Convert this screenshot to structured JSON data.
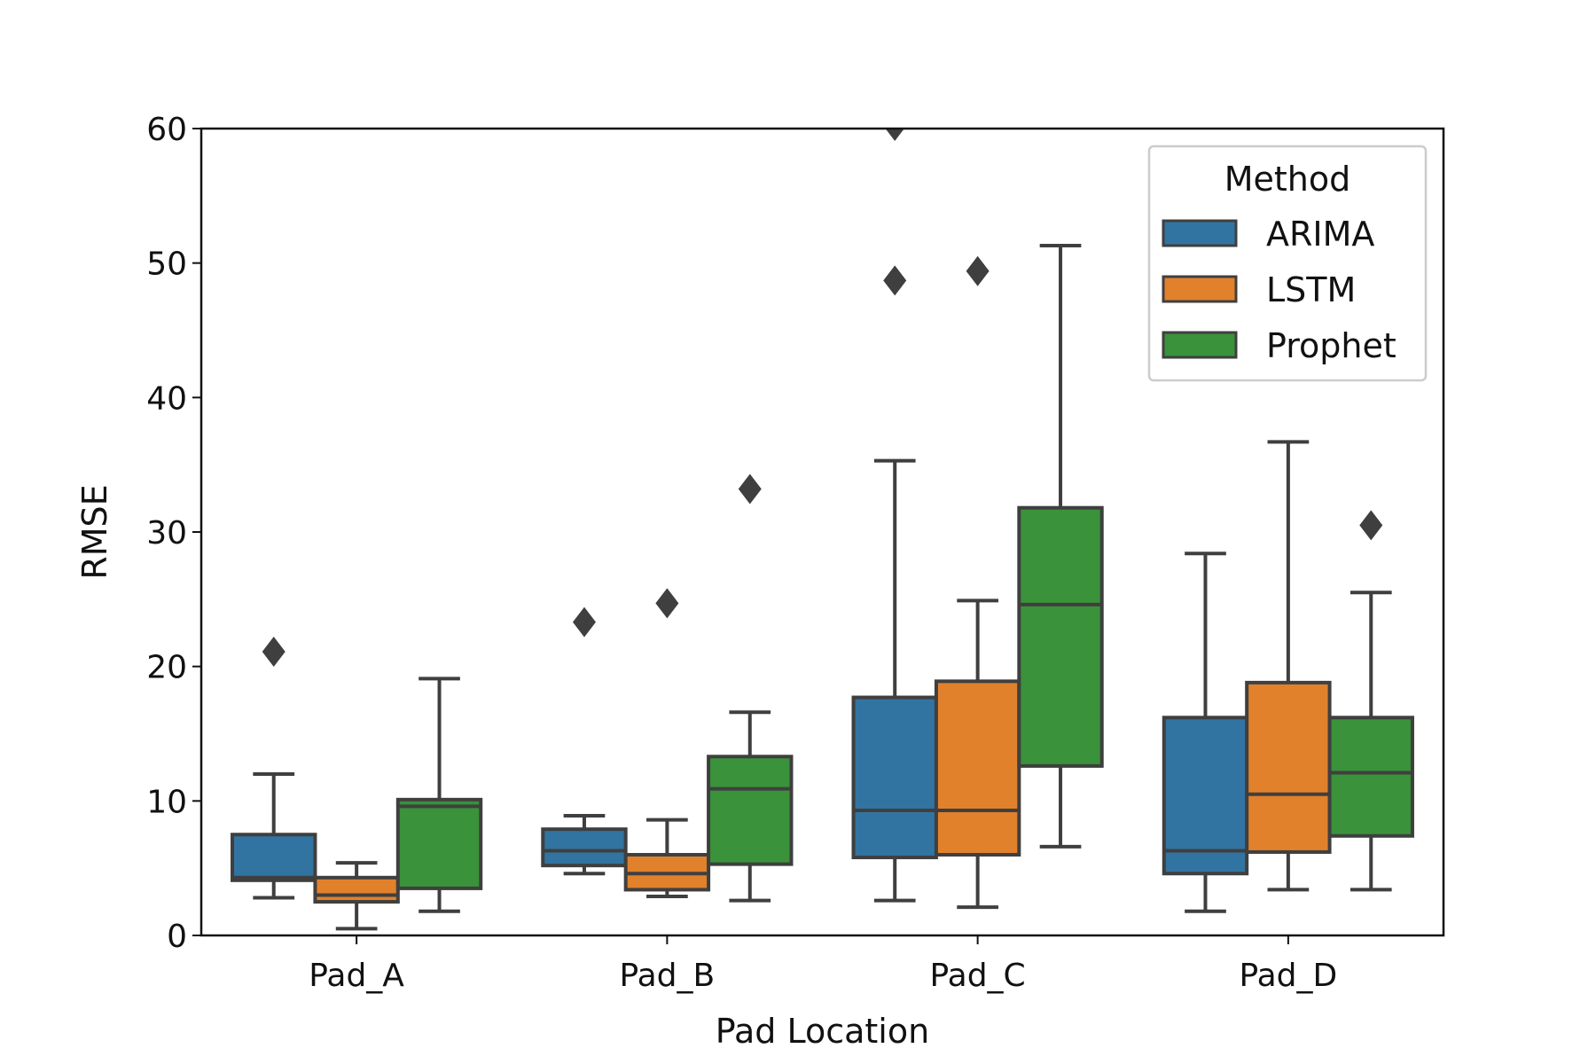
{
  "chart_data": {
    "type": "box",
    "title": "",
    "xlabel": "Pad Location",
    "ylabel": "RMSE",
    "ylim": [
      0,
      60
    ],
    "yticks": [
      0,
      10,
      20,
      30,
      40,
      50,
      60
    ],
    "categories": [
      "Pad_A",
      "Pad_B",
      "Pad_C",
      "Pad_D"
    ],
    "grid": false,
    "legend": {
      "title": "Method",
      "placement": "top-right"
    },
    "series": [
      {
        "name": "ARIMA",
        "color": "#3274a1",
        "boxes": [
          {
            "whisker_low": 2.8,
            "q1": 4.1,
            "median": 4.3,
            "q3": 7.5,
            "whisker_high": 12.0,
            "outliers": [
              21.1
            ]
          },
          {
            "whisker_low": 4.6,
            "q1": 5.2,
            "median": 6.3,
            "q3": 7.9,
            "whisker_high": 8.9,
            "outliers": [
              23.3
            ]
          },
          {
            "whisker_low": 2.6,
            "q1": 5.8,
            "median": 9.3,
            "q3": 17.7,
            "whisker_high": 35.3,
            "outliers": [
              48.7,
              60.2
            ]
          },
          {
            "whisker_low": 1.8,
            "q1": 4.6,
            "median": 6.3,
            "q3": 16.2,
            "whisker_high": 28.4,
            "outliers": []
          }
        ]
      },
      {
        "name": "LSTM",
        "color": "#e1812c",
        "boxes": [
          {
            "whisker_low": 0.5,
            "q1": 2.5,
            "median": 3.0,
            "q3": 4.3,
            "whisker_high": 5.4,
            "outliers": []
          },
          {
            "whisker_low": 2.9,
            "q1": 3.4,
            "median": 4.6,
            "q3": 6.0,
            "whisker_high": 8.6,
            "outliers": [
              24.7
            ]
          },
          {
            "whisker_low": 2.1,
            "q1": 6.0,
            "median": 9.3,
            "q3": 18.9,
            "whisker_high": 24.9,
            "outliers": [
              49.4
            ]
          },
          {
            "whisker_low": 3.4,
            "q1": 6.2,
            "median": 10.5,
            "q3": 18.8,
            "whisker_high": 36.7,
            "outliers": []
          }
        ]
      },
      {
        "name": "Prophet",
        "color": "#3a923a",
        "boxes": [
          {
            "whisker_low": 1.8,
            "q1": 3.5,
            "median": 9.6,
            "q3": 10.1,
            "whisker_high": 19.1,
            "outliers": []
          },
          {
            "whisker_low": 2.6,
            "q1": 5.3,
            "median": 10.9,
            "q3": 13.3,
            "whisker_high": 16.6,
            "outliers": [
              33.2
            ]
          },
          {
            "whisker_low": 6.6,
            "q1": 12.6,
            "median": 24.6,
            "q3": 31.8,
            "whisker_high": 51.3,
            "outliers": []
          },
          {
            "whisker_low": 3.4,
            "q1": 7.4,
            "median": 12.1,
            "q3": 16.2,
            "whisker_high": 25.5,
            "outliers": [
              30.5
            ]
          }
        ]
      }
    ]
  }
}
